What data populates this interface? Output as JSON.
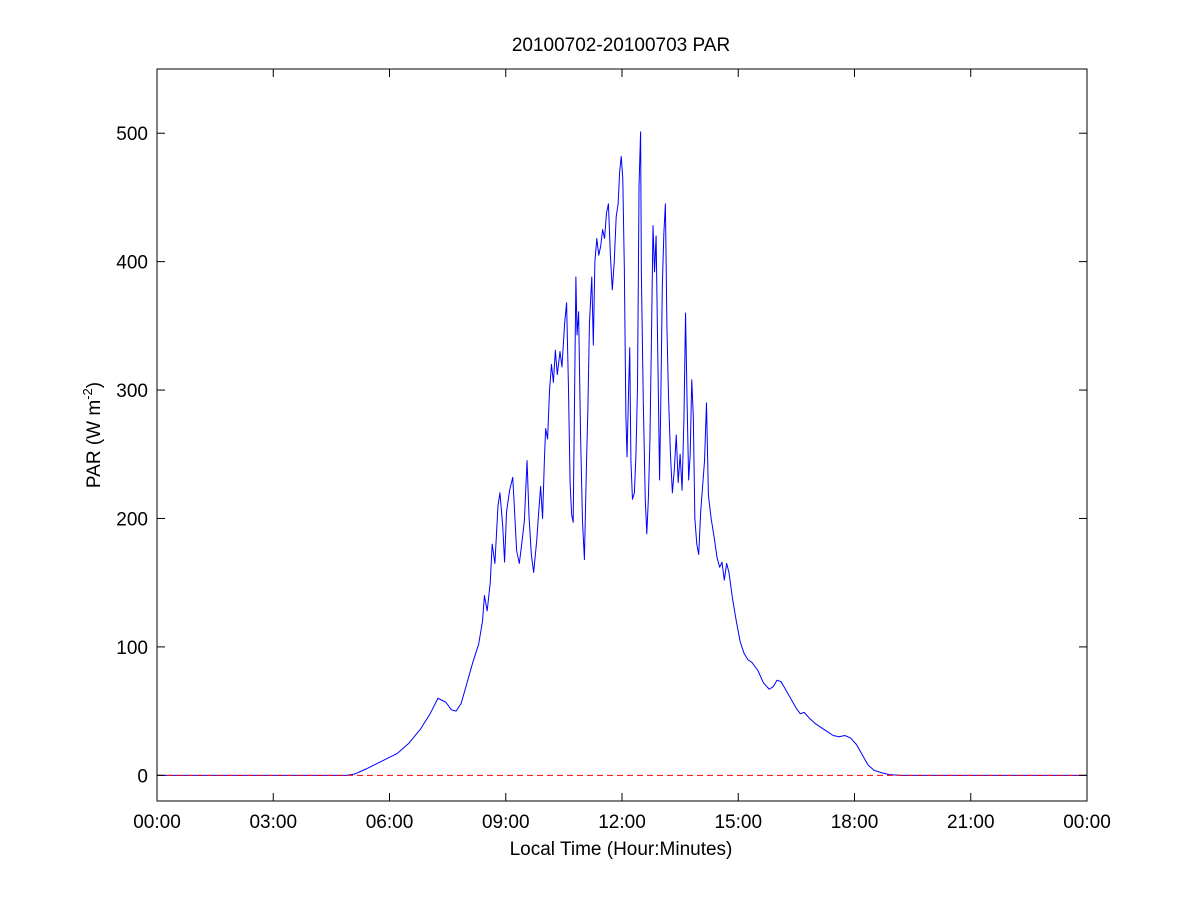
{
  "chart_data": {
    "type": "line",
    "title": "20100702-20100703 PAR",
    "xlabel": "Local Time (Hour:Minutes)",
    "ylabel": {
      "main": "PAR (W m",
      "sup": "-2",
      "close": ")"
    },
    "xlim": [
      0,
      24
    ],
    "ylim": [
      -20,
      550
    ],
    "grid": false,
    "x_ticks": [
      {
        "value": 0,
        "label": "00:00"
      },
      {
        "value": 3,
        "label": "03:00"
      },
      {
        "value": 6,
        "label": "06:00"
      },
      {
        "value": 9,
        "label": "09:00"
      },
      {
        "value": 12,
        "label": "12:00"
      },
      {
        "value": 15,
        "label": "15:00"
      },
      {
        "value": 18,
        "label": "18:00"
      },
      {
        "value": 21,
        "label": "21:00"
      },
      {
        "value": 24,
        "label": "00:00"
      }
    ],
    "y_ticks": [
      {
        "value": 0,
        "label": "0"
      },
      {
        "value": 100,
        "label": "100"
      },
      {
        "value": 200,
        "label": "200"
      },
      {
        "value": 300,
        "label": "300"
      },
      {
        "value": 400,
        "label": "400"
      },
      {
        "value": 500,
        "label": "500"
      }
    ],
    "series": [
      {
        "color": "#0000ff",
        "points": [
          [
            0,
            0
          ],
          [
            4.9,
            0
          ],
          [
            5.1,
            1
          ],
          [
            5.4,
            5
          ],
          [
            5.8,
            11
          ],
          [
            6.2,
            17
          ],
          [
            6.5,
            25
          ],
          [
            6.8,
            36
          ],
          [
            7.05,
            48
          ],
          [
            7.25,
            60
          ],
          [
            7.45,
            57
          ],
          [
            7.6,
            51
          ],
          [
            7.72,
            50
          ],
          [
            7.85,
            56
          ],
          [
            8.0,
            72
          ],
          [
            8.15,
            88
          ],
          [
            8.3,
            102
          ],
          [
            8.4,
            120
          ],
          [
            8.45,
            140
          ],
          [
            8.52,
            128
          ],
          [
            8.6,
            150
          ],
          [
            8.65,
            180
          ],
          [
            8.72,
            165
          ],
          [
            8.8,
            210
          ],
          [
            8.85,
            220
          ],
          [
            8.92,
            195
          ],
          [
            8.97,
            166
          ],
          [
            9.02,
            205
          ],
          [
            9.1,
            222
          ],
          [
            9.18,
            232
          ],
          [
            9.22,
            210
          ],
          [
            9.28,
            175
          ],
          [
            9.35,
            165
          ],
          [
            9.42,
            182
          ],
          [
            9.48,
            198
          ],
          [
            9.55,
            245
          ],
          [
            9.6,
            202
          ],
          [
            9.66,
            172
          ],
          [
            9.72,
            158
          ],
          [
            9.8,
            183
          ],
          [
            9.85,
            205
          ],
          [
            9.9,
            225
          ],
          [
            9.95,
            200
          ],
          [
            10.0,
            248
          ],
          [
            10.03,
            270
          ],
          [
            10.08,
            262
          ],
          [
            10.13,
            300
          ],
          [
            10.18,
            320
          ],
          [
            10.23,
            306
          ],
          [
            10.28,
            331
          ],
          [
            10.33,
            312
          ],
          [
            10.4,
            330
          ],
          [
            10.45,
            318
          ],
          [
            10.52,
            352
          ],
          [
            10.57,
            368
          ],
          [
            10.62,
            300
          ],
          [
            10.66,
            228
          ],
          [
            10.7,
            203
          ],
          [
            10.74,
            197
          ],
          [
            10.78,
            305
          ],
          [
            10.81,
            388
          ],
          [
            10.84,
            343
          ],
          [
            10.88,
            361
          ],
          [
            10.93,
            265
          ],
          [
            10.98,
            198
          ],
          [
            11.03,
            168
          ],
          [
            11.08,
            238
          ],
          [
            11.12,
            286
          ],
          [
            11.16,
            352
          ],
          [
            11.22,
            388
          ],
          [
            11.26,
            335
          ],
          [
            11.3,
            400
          ],
          [
            11.35,
            418
          ],
          [
            11.4,
            405
          ],
          [
            11.45,
            412
          ],
          [
            11.5,
            425
          ],
          [
            11.55,
            418
          ],
          [
            11.6,
            438
          ],
          [
            11.65,
            445
          ],
          [
            11.7,
            405
          ],
          [
            11.75,
            378
          ],
          [
            11.8,
            400
          ],
          [
            11.85,
            435
          ],
          [
            11.9,
            445
          ],
          [
            11.94,
            470
          ],
          [
            11.98,
            482
          ],
          [
            12.02,
            465
          ],
          [
            12.06,
            395
          ],
          [
            12.1,
            280
          ],
          [
            12.13,
            248
          ],
          [
            12.17,
            300
          ],
          [
            12.2,
            333
          ],
          [
            12.23,
            245
          ],
          [
            12.27,
            215
          ],
          [
            12.32,
            220
          ],
          [
            12.36,
            250
          ],
          [
            12.4,
            302
          ],
          [
            12.44,
            460
          ],
          [
            12.48,
            501
          ],
          [
            12.5,
            390
          ],
          [
            12.55,
            290
          ],
          [
            12.6,
            215
          ],
          [
            12.64,
            188
          ],
          [
            12.68,
            215
          ],
          [
            12.72,
            260
          ],
          [
            12.76,
            340
          ],
          [
            12.8,
            428
          ],
          [
            12.84,
            392
          ],
          [
            12.88,
            420
          ],
          [
            12.92,
            335
          ],
          [
            12.97,
            230
          ],
          [
            13.0,
            288
          ],
          [
            13.04,
            380
          ],
          [
            13.08,
            422
          ],
          [
            13.12,
            445
          ],
          [
            13.16,
            348
          ],
          [
            13.2,
            295
          ],
          [
            13.25,
            250
          ],
          [
            13.3,
            220
          ],
          [
            13.35,
            238
          ],
          [
            13.4,
            265
          ],
          [
            13.45,
            228
          ],
          [
            13.5,
            250
          ],
          [
            13.55,
            222
          ],
          [
            13.6,
            280
          ],
          [
            13.64,
            360
          ],
          [
            13.68,
            290
          ],
          [
            13.72,
            230
          ],
          [
            13.76,
            250
          ],
          [
            13.8,
            308
          ],
          [
            13.84,
            280
          ],
          [
            13.88,
            200
          ],
          [
            13.93,
            180
          ],
          [
            13.98,
            172
          ],
          [
            14.03,
            205
          ],
          [
            14.08,
            225
          ],
          [
            14.13,
            245
          ],
          [
            14.18,
            290
          ],
          [
            14.23,
            218
          ],
          [
            14.3,
            200
          ],
          [
            14.38,
            185
          ],
          [
            14.45,
            170
          ],
          [
            14.52,
            162
          ],
          [
            14.58,
            166
          ],
          [
            14.64,
            152
          ],
          [
            14.7,
            165
          ],
          [
            14.76,
            158
          ],
          [
            14.85,
            138
          ],
          [
            14.95,
            120
          ],
          [
            15.05,
            104
          ],
          [
            15.15,
            95
          ],
          [
            15.25,
            90
          ],
          [
            15.35,
            88
          ],
          [
            15.5,
            82
          ],
          [
            15.65,
            72
          ],
          [
            15.8,
            67
          ],
          [
            15.9,
            69
          ],
          [
            16.0,
            74
          ],
          [
            16.1,
            73
          ],
          [
            16.2,
            68
          ],
          [
            16.35,
            60
          ],
          [
            16.5,
            52
          ],
          [
            16.6,
            48
          ],
          [
            16.7,
            49
          ],
          [
            16.85,
            44
          ],
          [
            17.0,
            40
          ],
          [
            17.15,
            37
          ],
          [
            17.3,
            34
          ],
          [
            17.45,
            31
          ],
          [
            17.6,
            30
          ],
          [
            17.75,
            31
          ],
          [
            17.9,
            29
          ],
          [
            18.05,
            24
          ],
          [
            18.2,
            16
          ],
          [
            18.35,
            8
          ],
          [
            18.5,
            4
          ],
          [
            18.7,
            2
          ],
          [
            18.9,
            0.5
          ],
          [
            19.2,
            0
          ],
          [
            24,
            0
          ]
        ]
      },
      {
        "color": "#ff0000",
        "dash": true,
        "points": [
          [
            0,
            0
          ],
          [
            24,
            0
          ]
        ]
      }
    ]
  }
}
